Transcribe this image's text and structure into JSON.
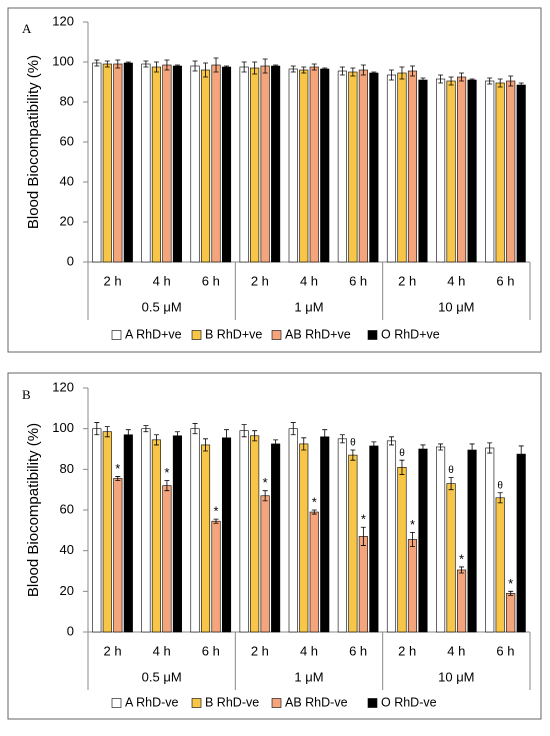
{
  "chart_data": [
    {
      "type": "bar",
      "panel_label": "A",
      "y_label": "Blood Biocompatibility (%)",
      "categories": [
        "2 h",
        "4 h",
        "6 h",
        "2 h",
        "4 h",
        "6 h",
        "2 h",
        "4 h",
        "6 h"
      ],
      "groups": [
        "0.5 μM",
        "1 μM",
        "10 μM"
      ],
      "ylim": [
        0,
        120
      ],
      "yticks": [
        0,
        20,
        40,
        60,
        80,
        100,
        120
      ],
      "series": [
        {
          "name": "A RhD+ve",
          "color": "#ffffff",
          "values": [
            99.5,
            99,
            98,
            97.5,
            96.5,
            95.5,
            93.5,
            91.5,
            90.5
          ],
          "errors": [
            1.5,
            1.5,
            2.5,
            2.5,
            1.5,
            2,
            2.5,
            2,
            1.5
          ]
        },
        {
          "name": "B RhD+ve",
          "color": "#f7c548",
          "values": [
            99,
            97.5,
            96,
            97,
            96,
            95,
            94.5,
            90.5,
            89.5
          ],
          "errors": [
            1.5,
            2.5,
            3.5,
            3,
            1.5,
            2,
            3,
            2,
            2
          ]
        },
        {
          "name": "AB RhD+ve",
          "color": "#f4a57c",
          "values": [
            99,
            98.5,
            98.5,
            98,
            97.5,
            96,
            95.5,
            92.5,
            90.5
          ],
          "errors": [
            2,
            2.5,
            3.5,
            3.5,
            1.5,
            2.5,
            2.5,
            2,
            2.5
          ]
        },
        {
          "name": "O RhD+ve",
          "color": "#000000",
          "values": [
            99.5,
            98,
            97.5,
            98,
            96.5,
            94.5,
            91,
            91,
            88.5
          ],
          "errors": [
            0.5,
            0.5,
            0.5,
            0.5,
            0.5,
            0.5,
            1,
            0.5,
            1
          ]
        }
      ]
    },
    {
      "type": "bar",
      "panel_label": "B",
      "y_label": "Blood Biocompatibility (%)",
      "categories": [
        "2 h",
        "4 h",
        "6 h",
        "2 h",
        "4 h",
        "6 h",
        "2 h",
        "4 h",
        "6 h"
      ],
      "groups": [
        "0.5 μM",
        "1 μM",
        "10 μM"
      ],
      "ylim": [
        0,
        120
      ],
      "yticks": [
        0,
        20,
        40,
        60,
        80,
        100,
        120
      ],
      "series": [
        {
          "name": "A RhD-ve",
          "color": "#ffffff",
          "values": [
            100,
            100,
            100,
            99,
            100,
            95,
            94,
            91,
            90.5
          ],
          "errors": [
            3,
            1.5,
            2.5,
            3,
            3,
            2,
            2,
            1.5,
            2.5
          ],
          "markers": [
            null,
            null,
            null,
            null,
            null,
            null,
            null,
            null,
            null
          ]
        },
        {
          "name": "B RhD-ve",
          "color": "#f7c548",
          "values": [
            98.5,
            94.5,
            92,
            96.5,
            92.5,
            87,
            81,
            73,
            66
          ],
          "errors": [
            2.5,
            2.5,
            3,
            2.5,
            3,
            2.5,
            3.5,
            3,
            2.5
          ],
          "markers": [
            null,
            null,
            null,
            null,
            null,
            "θ",
            "θ",
            "θ",
            "θ"
          ]
        },
        {
          "name": "AB RhD-ve",
          "color": "#f4a57c",
          "values": [
            75.5,
            72,
            54.5,
            67,
            59,
            47,
            45.5,
            30.5,
            19
          ],
          "errors": [
            1,
            2.5,
            1,
            2.5,
            1,
            4.5,
            3.5,
            1.5,
            1
          ],
          "markers": [
            "*",
            "*",
            "*",
            "*",
            "*",
            "*",
            "*",
            "*",
            "*"
          ]
        },
        {
          "name": "O RhD-ve",
          "color": "#000000",
          "values": [
            97,
            96.5,
            95.5,
            92.5,
            96,
            91.5,
            90,
            89.5,
            87.5
          ],
          "errors": [
            2.5,
            2,
            4,
            2,
            3.5,
            2,
            2,
            3,
            4
          ]
        }
      ]
    }
  ]
}
